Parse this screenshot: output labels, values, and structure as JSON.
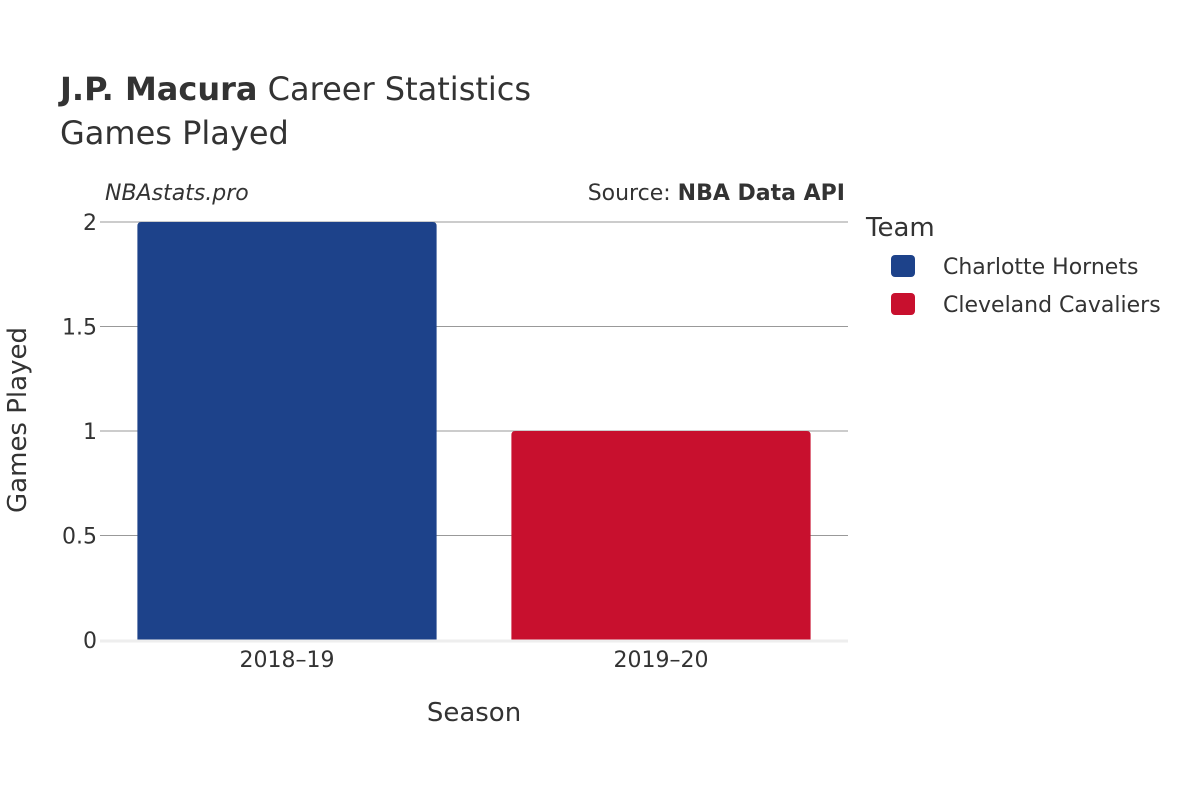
{
  "title": {
    "player": "J.P. Macura",
    "rest": "Career Statistics",
    "subtitle": "Games Played"
  },
  "watermark": "NBAstats.pro",
  "source": {
    "prefix": "Source: ",
    "name": "NBA Data API"
  },
  "legend": {
    "title": "Team",
    "placement": "right"
  },
  "chart_data": {
    "type": "bar",
    "categories": [
      "2018–19",
      "2019–20"
    ],
    "series": [
      {
        "name": "Charlotte Hornets",
        "color": "#1d428a",
        "values": [
          2,
          null
        ]
      },
      {
        "name": "Cleveland Cavaliers",
        "color": "#c8102e",
        "values": [
          null,
          1
        ]
      }
    ],
    "xlabel": "Season",
    "ylabel": "Games Played",
    "ylim": [
      0,
      2
    ],
    "yticks": [
      0,
      0.5,
      1,
      1.5,
      2
    ],
    "ytick_labels": [
      "0",
      "0.5",
      "1",
      "1.5",
      "2"
    ],
    "grid": true
  }
}
